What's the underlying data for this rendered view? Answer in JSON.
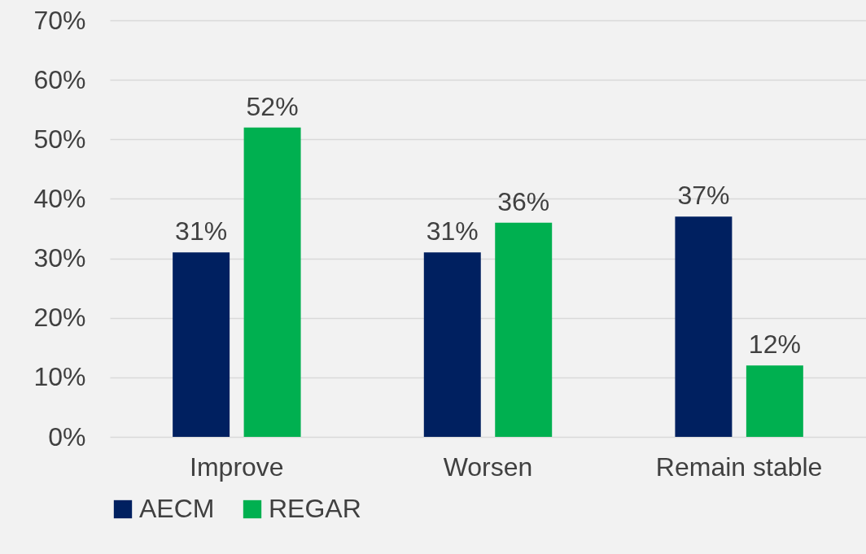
{
  "chart_data": {
    "type": "bar",
    "categories": [
      "Improve",
      "Worsen",
      "Remain stable"
    ],
    "series": [
      {
        "name": "AECM",
        "color": "#002060",
        "values": [
          31,
          31,
          37
        ],
        "value_labels": [
          "31%",
          "31%",
          "37%"
        ]
      },
      {
        "name": "REGAR",
        "color": "#00b050",
        "values": [
          52,
          36,
          12
        ],
        "value_labels": [
          "52%",
          "36%",
          "12%"
        ]
      }
    ],
    "ylim": [
      0,
      70
    ],
    "yticks": [
      {
        "value": 0,
        "label": "0%"
      },
      {
        "value": 10,
        "label": "10%"
      },
      {
        "value": 20,
        "label": "20%"
      },
      {
        "value": 30,
        "label": "30%"
      },
      {
        "value": 40,
        "label": "40%"
      },
      {
        "value": 50,
        "label": "50%"
      },
      {
        "value": 60,
        "label": "60%"
      },
      {
        "value": 70,
        "label": "70%"
      }
    ],
    "grid": "y",
    "legend": "bottom"
  }
}
